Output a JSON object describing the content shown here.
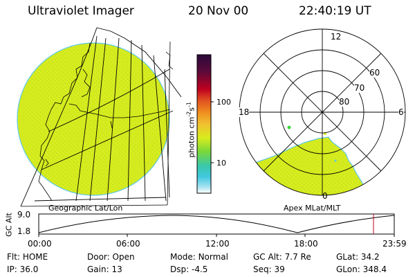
{
  "header": {
    "instrument": "Ultraviolet Imager",
    "date": "20 Nov 00",
    "time": "22:40:19 UT"
  },
  "colors": {
    "image_fill": "#d8ec1e",
    "image_speckle": "#a8d820",
    "image_edge": "#5cc8e8",
    "background": "#ffffff"
  },
  "colorbar": {
    "unit": "photon cm",
    "unit_sup1": "-2",
    "unit_mid": "s",
    "unit_sup2": "-1",
    "tick_high": "100",
    "tick_low": "10",
    "scale": "log",
    "stops": [
      "#2a0a3a",
      "#5a0a3a",
      "#c00020",
      "#e05020",
      "#f09020",
      "#f0c030",
      "#d8ec1e",
      "#7ad83a",
      "#3ac8a8",
      "#40c8e0",
      "#a0e0f0",
      "#ffffff"
    ]
  },
  "left_panel": {
    "label": "Geographic Lat/Lon"
  },
  "right_panel": {
    "label": "Apex MLat/MLT",
    "mlt_labels": {
      "top": "12",
      "left": "18",
      "right": "6",
      "bottom": "0"
    },
    "lat_labels": [
      "60",
      "70",
      "80"
    ]
  },
  "altitude_plot": {
    "axis_label": "GC Alt",
    "y_max": "9.0",
    "y_min": "1.8",
    "time_ticks": [
      "00:00",
      "06:00",
      "12:00",
      "18:00",
      "23:59"
    ]
  },
  "status": {
    "row1": [
      {
        "key": "Flt:",
        "value": "HOME"
      },
      {
        "key": "Door:",
        "value": "Open"
      },
      {
        "key": "Mode:",
        "value": "Normal"
      },
      {
        "key": "GC Alt:",
        "value": "7.7 Re"
      },
      {
        "key": "GLat:",
        "value": "34.2"
      }
    ],
    "row2": [
      {
        "key": "IP:",
        "value": "36.0"
      },
      {
        "key": "Gain:",
        "value": "13"
      },
      {
        "key": "Dsp:",
        "value": "-4.5"
      },
      {
        "key": "Seq:",
        "value": "39"
      },
      {
        "key": "GLon:",
        "value": "348.4"
      }
    ]
  }
}
